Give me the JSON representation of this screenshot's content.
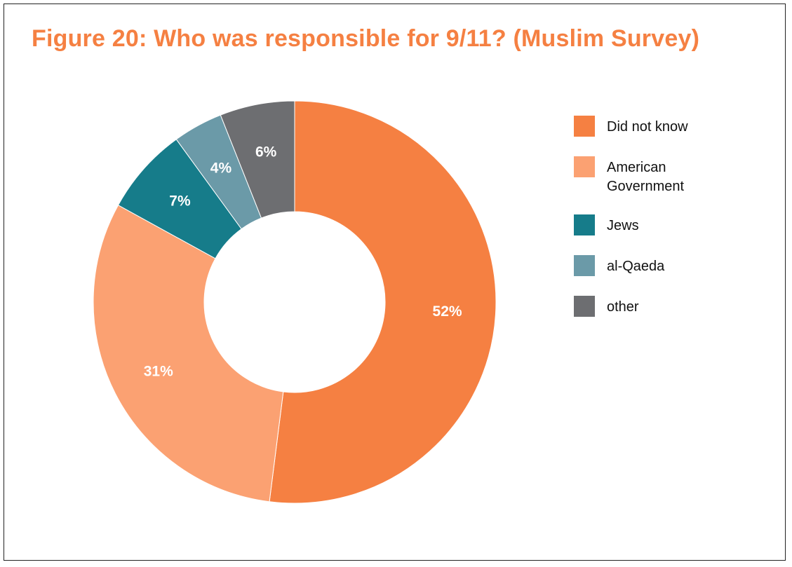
{
  "chart_data": {
    "type": "pie",
    "title": "Figure 20: Who was responsible for 9/11? (Muslim Survey)",
    "categories": [
      "Did not know",
      "American Government",
      "Jews",
      "al-Qaeda",
      "other"
    ],
    "values": [
      52,
      31,
      7,
      4,
      6
    ],
    "labels": [
      "52%",
      "31%",
      "7%",
      "4%",
      "6%"
    ],
    "colors": [
      "#f58042",
      "#fba172",
      "#167c8a",
      "#6b9aa8",
      "#6d6e71"
    ],
    "donut": true,
    "legend_position": "right"
  },
  "legend": [
    {
      "label": "Did not know",
      "color": "#f58042"
    },
    {
      "label": "American Government",
      "color": "#fba172"
    },
    {
      "label": "Jews",
      "color": "#167c8a"
    },
    {
      "label": "al-Qaeda",
      "color": "#6b9aa8"
    },
    {
      "label": "other",
      "color": "#6d6e71"
    }
  ]
}
